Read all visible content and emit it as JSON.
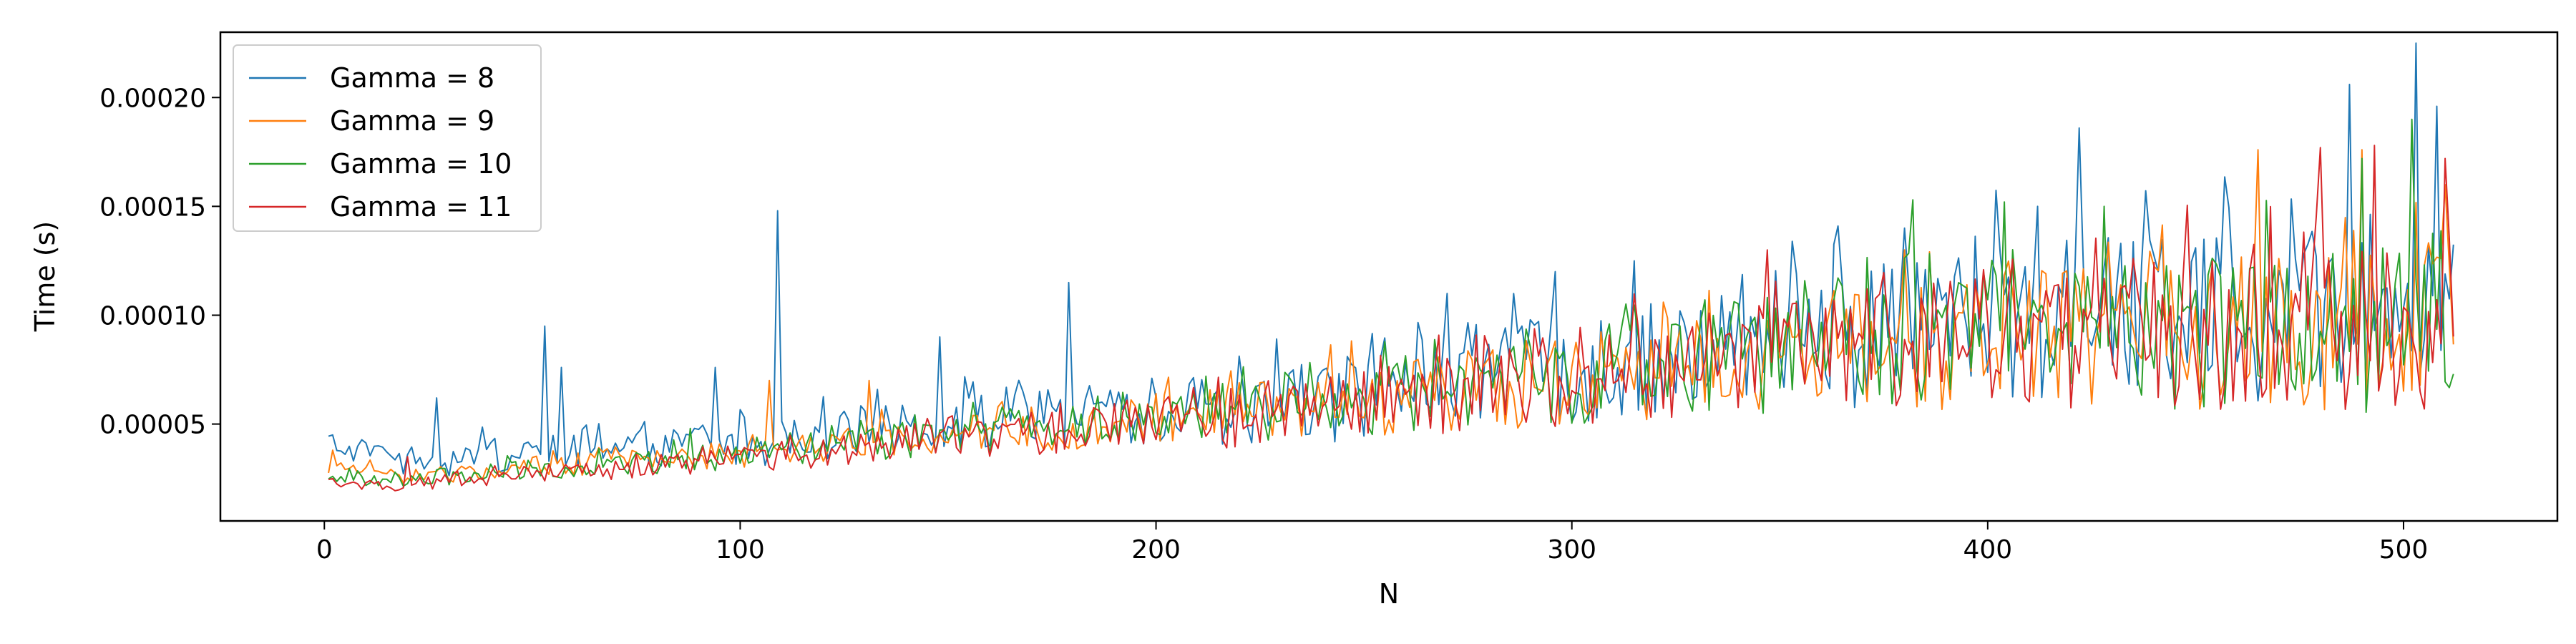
{
  "chart_data": {
    "type": "line",
    "xlabel": "N",
    "ylabel": "Time (s)",
    "xlim": [
      -25,
      537
    ],
    "ylim": [
      5.5e-06,
      0.00023
    ],
    "xticks": [
      0,
      100,
      200,
      300,
      400,
      500
    ],
    "xtick_labels": [
      "0",
      "100",
      "200",
      "300",
      "400",
      "500"
    ],
    "yticks": [
      5e-05,
      0.0001,
      0.00015,
      0.0002
    ],
    "ytick_labels": [
      "0.00005",
      "0.00010",
      "0.00015",
      "0.00020"
    ],
    "legend_position": "top-left",
    "grid": false,
    "x_range": [
      1,
      512
    ],
    "series": [
      {
        "name": "Gamma = 8",
        "color": "#1f77b4",
        "anchors": [
          [
            1,
            4e-05
          ],
          [
            20,
            3.2e-05
          ],
          [
            50,
            3.8e-05
          ],
          [
            100,
            4e-05
          ],
          [
            150,
            5e-05
          ],
          [
            200,
            5.5e-05
          ],
          [
            250,
            6.2e-05
          ],
          [
            300,
            7.5e-05
          ],
          [
            350,
            8.5e-05
          ],
          [
            400,
            9.5e-05
          ],
          [
            450,
            9.8e-05
          ],
          [
            512,
            0.000105
          ]
        ],
        "amplitude": [
          [
            1,
            4e-06
          ],
          [
            25,
            8e-06
          ],
          [
            100,
            1e-05
          ],
          [
            200,
            1.5e-05
          ],
          [
            300,
            2.5e-05
          ],
          [
            400,
            3.5e-05
          ],
          [
            512,
            4.2e-05
          ]
        ],
        "spikes": [
          [
            2,
            4.5e-05
          ],
          [
            27,
            6.2e-05
          ],
          [
            53,
            9.5e-05
          ],
          [
            57,
            7.6e-05
          ],
          [
            94,
            7.6e-05
          ],
          [
            109,
            0.000148
          ],
          [
            148,
            9e-05
          ],
          [
            179,
            0.000115
          ],
          [
            270,
            0.00011
          ],
          [
            296,
            0.00012
          ],
          [
            315,
            0.000125
          ],
          [
            380,
            0.00014
          ],
          [
            412,
            0.00015
          ],
          [
            422,
            0.000186
          ],
          [
            487,
            0.000206
          ],
          [
            503,
            0.000225
          ],
          [
            508,
            0.000196
          ]
        ]
      },
      {
        "name": "Gamma = 9",
        "color": "#ff7f0e",
        "anchors": [
          [
            1,
            3e-05
          ],
          [
            20,
            2.6e-05
          ],
          [
            50,
            3e-05
          ],
          [
            100,
            3.6e-05
          ],
          [
            150,
            4.5e-05
          ],
          [
            200,
            5.2e-05
          ],
          [
            250,
            6e-05
          ],
          [
            300,
            7e-05
          ],
          [
            350,
            8e-05
          ],
          [
            400,
            8.8e-05
          ],
          [
            450,
            9e-05
          ],
          [
            512,
            9.5e-05
          ]
        ],
        "amplitude": [
          [
            1,
            3e-06
          ],
          [
            25,
            4e-06
          ],
          [
            100,
            6e-06
          ],
          [
            200,
            1.2e-05
          ],
          [
            300,
            2.2e-05
          ],
          [
            400,
            3.2e-05
          ],
          [
            512,
            4e-05
          ]
        ],
        "spikes": [
          [
            2,
            3.8e-05
          ],
          [
            107,
            7e-05
          ],
          [
            131,
            7e-05
          ],
          [
            380,
            0.00013
          ],
          [
            465,
            0.000176
          ],
          [
            490,
            0.000176
          ],
          [
            510,
            0.00016
          ]
        ]
      },
      {
        "name": "Gamma = 10",
        "color": "#2ca02c",
        "anchors": [
          [
            1,
            2.5e-05
          ],
          [
            20,
            2.4e-05
          ],
          [
            50,
            2.9e-05
          ],
          [
            100,
            3.5e-05
          ],
          [
            150,
            4.4e-05
          ],
          [
            200,
            5.1e-05
          ],
          [
            250,
            6e-05
          ],
          [
            300,
            7.2e-05
          ],
          [
            350,
            8.2e-05
          ],
          [
            400,
            9.2e-05
          ],
          [
            450,
            9.2e-05
          ],
          [
            512,
            9e-05
          ]
        ],
        "amplitude": [
          [
            1,
            3e-06
          ],
          [
            25,
            4e-06
          ],
          [
            100,
            6e-06
          ],
          [
            200,
            1.2e-05
          ],
          [
            300,
            2.2e-05
          ],
          [
            400,
            3.2e-05
          ],
          [
            512,
            4e-05
          ]
        ],
        "spikes": [
          [
            88,
            4.8e-05
          ],
          [
            212,
            7.2e-05
          ],
          [
            382,
            0.000153
          ],
          [
            404,
            0.000152
          ],
          [
            428,
            0.00015
          ],
          [
            490,
            0.000172
          ],
          [
            502,
            0.00019
          ],
          [
            512,
            7.3e-05
          ]
        ]
      },
      {
        "name": "Gamma = 11",
        "color": "#d62728",
        "anchors": [
          [
            1,
            2.2e-05
          ],
          [
            20,
            2.2e-05
          ],
          [
            50,
            2.7e-05
          ],
          [
            100,
            3.3e-05
          ],
          [
            150,
            4.3e-05
          ],
          [
            200,
            5e-05
          ],
          [
            250,
            5.8e-05
          ],
          [
            300,
            7e-05
          ],
          [
            350,
            8e-05
          ],
          [
            400,
            8.8e-05
          ],
          [
            450,
            9e-05
          ],
          [
            512,
            9.2e-05
          ]
        ],
        "amplitude": [
          [
            1,
            2e-06
          ],
          [
            25,
            3e-06
          ],
          [
            100,
            6e-06
          ],
          [
            200,
            1.2e-05
          ],
          [
            300,
            2.2e-05
          ],
          [
            400,
            3.2e-05
          ],
          [
            512,
            4e-05
          ]
        ],
        "spikes": [
          [
            20,
            3.5e-05
          ],
          [
            110,
            4.2e-05
          ],
          [
            347,
            0.00013
          ],
          [
            480,
            0.000177
          ],
          [
            493,
            0.000178
          ],
          [
            510,
            0.000172
          ]
        ]
      }
    ]
  }
}
